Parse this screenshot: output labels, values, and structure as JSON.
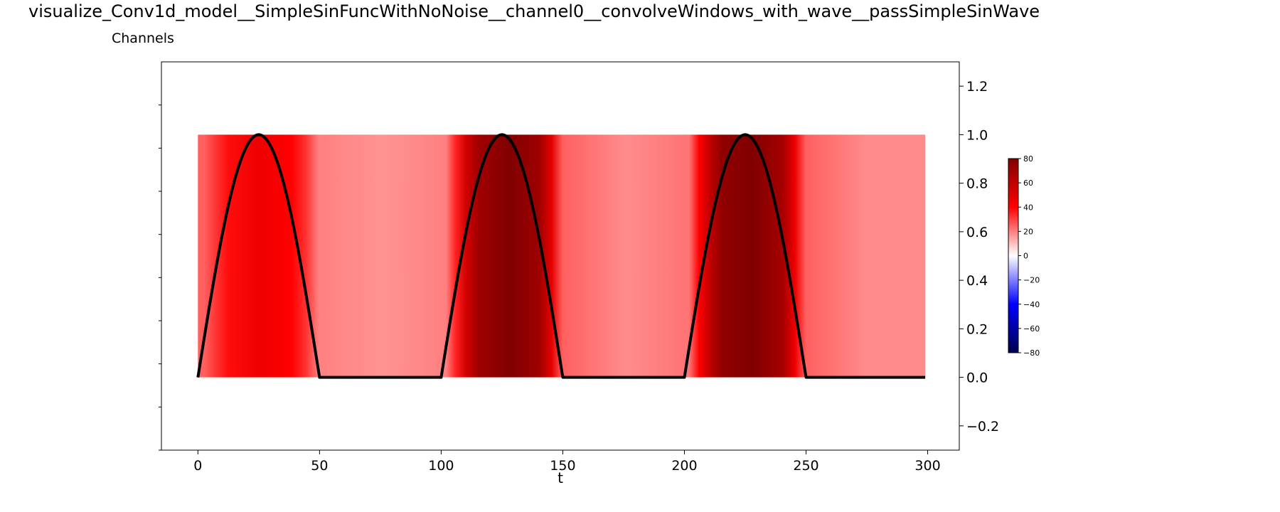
{
  "title": "visualize_Conv1d_model__SimpleSinFuncWithNoNoise__channel0__convolveWindows_with_wave__passSimpleSinWave",
  "subtitle": "Channels",
  "chart_data": {
    "type": "heatmap",
    "title": "visualize_Conv1d_model__SimpleSinFuncWithNoNoise__channel0__convolveWindows_with_wave__passSimpleSinWave",
    "subtitle": "Channels",
    "xlabel": "t",
    "ylabel": "",
    "xlim": [
      -15,
      313
    ],
    "ylim": [
      -0.3,
      1.3
    ],
    "x_ticks": [
      0,
      50,
      100,
      150,
      200,
      250,
      300
    ],
    "x_tick_labels": [
      "0",
      "50",
      "100",
      "150",
      "200",
      "250",
      "300"
    ],
    "y_ticks": [
      -0.2,
      0.0,
      0.2,
      0.4,
      0.6,
      0.8,
      1.0,
      1.2
    ],
    "y_tick_labels": [
      "−0.2",
      "0.0",
      "0.2",
      "0.4",
      "0.6",
      "0.8",
      "1.0",
      "1.2"
    ],
    "y_axis_side": "right",
    "grid": false,
    "heatmap": {
      "x_range": [
        0,
        299
      ],
      "y_range": [
        0,
        1
      ],
      "colormap": "seismic",
      "vmin": -80,
      "vmax": 80,
      "segments": [
        {
          "x": [
            0,
            5
          ],
          "value": 25
        },
        {
          "x": [
            5,
            10
          ],
          "value": 32
        },
        {
          "x": [
            10,
            15
          ],
          "value": 38
        },
        {
          "x": [
            15,
            35
          ],
          "value": 45
        },
        {
          "x": [
            35,
            42
          ],
          "value": 40
        },
        {
          "x": [
            42,
            47
          ],
          "value": 32
        },
        {
          "x": [
            47,
            52
          ],
          "value": 20
        },
        {
          "x": [
            52,
            100
          ],
          "value": 17
        },
        {
          "x": [
            100,
            104
          ],
          "value": 20
        },
        {
          "x": [
            104,
            108
          ],
          "value": 35
        },
        {
          "x": [
            108,
            113
          ],
          "value": 55
        },
        {
          "x": [
            113,
            118
          ],
          "value": 70
        },
        {
          "x": [
            118,
            138
          ],
          "value": 80
        },
        {
          "x": [
            138,
            143
          ],
          "value": 70
        },
        {
          "x": [
            143,
            148
          ],
          "value": 48
        },
        {
          "x": [
            148,
            152
          ],
          "value": 25
        },
        {
          "x": [
            152,
            200
          ],
          "value": 18
        },
        {
          "x": [
            200,
            204
          ],
          "value": 22
        },
        {
          "x": [
            204,
            208
          ],
          "value": 40
        },
        {
          "x": [
            208,
            213
          ],
          "value": 60
        },
        {
          "x": [
            213,
            218
          ],
          "value": 75
        },
        {
          "x": [
            218,
            238
          ],
          "value": 80
        },
        {
          "x": [
            238,
            243
          ],
          "value": 68
        },
        {
          "x": [
            243,
            248
          ],
          "value": 45
        },
        {
          "x": [
            248,
            252
          ],
          "value": 25
        },
        {
          "x": [
            252,
            299
          ],
          "value": 18
        }
      ]
    },
    "series": [
      {
        "type": "line",
        "color": "#000000",
        "function": "max(0, sin(2*pi*t/100)) for t in 0..299",
        "x_range": [
          0,
          299
        ],
        "period": 100
      }
    ],
    "colorbar": {
      "ticks": [
        80,
        60,
        40,
        20,
        0,
        -20,
        -40,
        -60,
        -80
      ],
      "tick_labels": [
        "80",
        "60",
        "40",
        "20",
        "0",
        "−20",
        "−40",
        "−60",
        "−80"
      ],
      "colormap": "seismic"
    }
  }
}
